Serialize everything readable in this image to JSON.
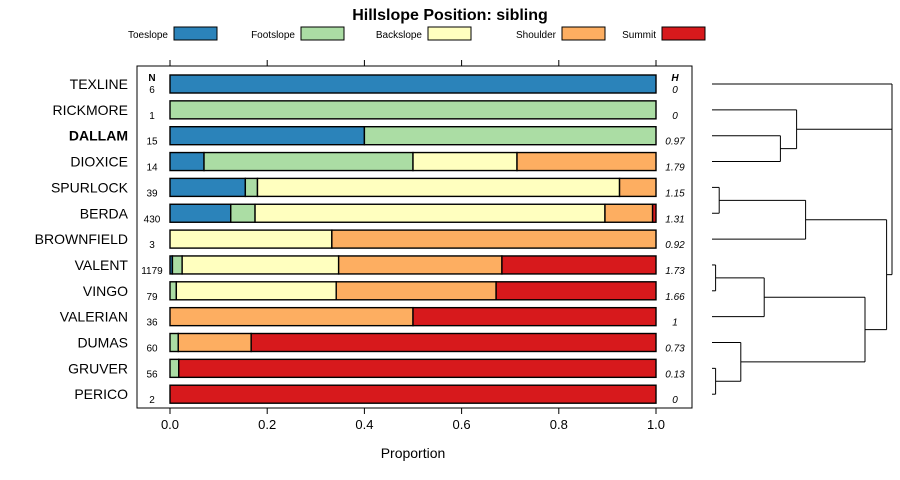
{
  "chart_data": {
    "type": "bar",
    "stacked": true,
    "orientation": "horizontal",
    "title": "Hillslope Position: sibling",
    "xlabel": "Proportion",
    "xlim": [
      0,
      1
    ],
    "xticks": [
      "0.0",
      "0.2",
      "0.4",
      "0.6",
      "0.8",
      "1.0"
    ],
    "xtick_values": [
      0,
      0.2,
      0.4,
      0.6,
      0.8,
      1.0
    ],
    "n_header": "N",
    "h_header": "H",
    "highlight": "DALLAM",
    "legend": [
      {
        "name": "Toeslope",
        "color": "#2B83BA"
      },
      {
        "name": "Footslope",
        "color": "#ABDDA4"
      },
      {
        "name": "Backslope",
        "color": "#FFFFBF"
      },
      {
        "name": "Shoulder",
        "color": "#FDAE61"
      },
      {
        "name": "Summit",
        "color": "#D7191C"
      }
    ],
    "categories": [
      "TEXLINE",
      "RICKMORE",
      "DALLAM",
      "DIOXICE",
      "SPURLOCK",
      "BERDA",
      "BROWNFIELD",
      "VALENT",
      "VINGO",
      "VALERIAN",
      "DUMAS",
      "GRUVER",
      "PERICO"
    ],
    "n": [
      "6",
      "1",
      "15",
      "14",
      "39",
      "430",
      "3",
      "1179",
      "79",
      "36",
      "60",
      "56",
      "2"
    ],
    "h": [
      "0",
      "0",
      "0.97",
      "1.79",
      "1.15",
      "1.31",
      "0.92",
      "1.73",
      "1.66",
      "1",
      "0.73",
      "0.13",
      "0"
    ],
    "series": [
      {
        "name": "Toeslope",
        "values": [
          1.0,
          0,
          0.4,
          0.07,
          0.155,
          0.125,
          0,
          0.005,
          0,
          0,
          0,
          0,
          0
        ]
      },
      {
        "name": "Footslope",
        "values": [
          0,
          1.0,
          0.6,
          0.43,
          0.025,
          0.05,
          0,
          0.02,
          0.013,
          0,
          0.017,
          0.018,
          0
        ]
      },
      {
        "name": "Backslope",
        "values": [
          0,
          0,
          0,
          0.214,
          0.745,
          0.72,
          0.333,
          0.322,
          0.329,
          0,
          0,
          0,
          0
        ]
      },
      {
        "name": "Shoulder",
        "values": [
          0,
          0,
          0,
          0.286,
          0.075,
          0.098,
          0.667,
          0.336,
          0.329,
          0.5,
          0.15,
          0,
          0
        ]
      },
      {
        "name": "Summit",
        "values": [
          0,
          0,
          0,
          0,
          0,
          0.007,
          0,
          0.317,
          0.329,
          0.5,
          0.833,
          0.982,
          1.0
        ]
      }
    ],
    "dendrogram": {
      "type": "hierarchical-clustering",
      "leaves": [
        "TEXLINE",
        "RICKMORE",
        "DALLAM",
        "DIOXICE",
        "SPURLOCK",
        "BERDA",
        "BROWNFIELD",
        "VALENT",
        "VINGO",
        "VALERIAN",
        "DUMAS",
        "GRUVER",
        "PERICO"
      ],
      "merges": [
        {
          "a": "DALLAM",
          "b": "DIOXICE",
          "height": 0.38
        },
        {
          "a": "RICKMORE",
          "b": "DALLAM+DIOXICE",
          "height": 0.47
        },
        {
          "a": "TEXLINE",
          "b": "RICKMORE+DALLAM+DIOXICE",
          "height": 1.0
        },
        {
          "a": "SPURLOCK",
          "b": "BERDA",
          "height": 0.04
        },
        {
          "a": "SPURLOCK+BERDA",
          "b": "BROWNFIELD",
          "height": 0.52
        },
        {
          "a": "VALENT",
          "b": "VINGO",
          "height": 0.02
        },
        {
          "a": "VALENT+VINGO",
          "b": "VALERIAN",
          "height": 0.29
        },
        {
          "a": "GRUVER",
          "b": "PERICO",
          "height": 0.02
        },
        {
          "a": "DUMAS",
          "b": "GRUVER+PERICO",
          "height": 0.16
        },
        {
          "a": "VALENT+VINGO+VALERIAN",
          "b": "DUMAS+GRUVER+PERICO",
          "height": 0.85
        },
        {
          "a": "SPURLOCK+BERDA+BROWNFIELD",
          "b": "VALENT+VINGO+VALERIAN+DUMAS+GRUVER+PERICO",
          "height": 0.97
        },
        {
          "a": "TEXLINE+RICKMORE+DALLAM+DIOXICE",
          "b": "rest",
          "height": 1.0
        }
      ]
    }
  }
}
